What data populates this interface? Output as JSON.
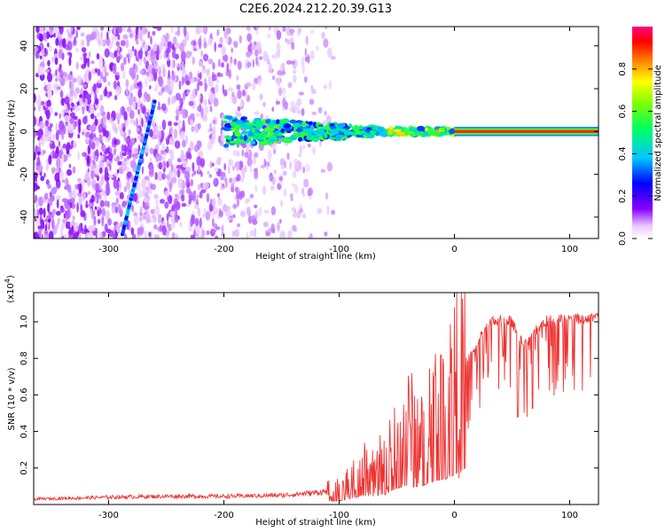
{
  "title": "C2E6.2024.212.20.39.G13",
  "chart_data": [
    {
      "type": "heatmap",
      "xlabel": "Height of straight line (km)",
      "ylabel": "Frequency (Hz)",
      "xlim": [
        -365,
        125
      ],
      "ylim": [
        -50,
        49
      ],
      "xticks": [
        -300,
        -200,
        -100,
        0,
        100
      ],
      "yticks": [
        -40,
        -20,
        0,
        20,
        40
      ],
      "colorbar": {
        "label": "Normalized spectral amplitude",
        "range": [
          0,
          1
        ],
        "ticks": [
          0.0,
          0.2,
          0.4,
          0.6,
          0.8
        ],
        "colormap": "rainbow (white-violet-blue-cyan-green-yellow-red-magenta)"
      },
      "features": {
        "diagonal_streak": {
          "from": [
            -288,
            -48
          ],
          "to": [
            -260,
            14
          ],
          "amplitude": 0.22
        },
        "tone_band": {
          "from_x": -200,
          "to_x": 125,
          "frequency": 0,
          "peak_amplitude": 0.9
        },
        "noise_region": {
          "from_x": -365,
          "to_x": -105
        }
      },
      "grid": false
    },
    {
      "type": "line",
      "xlabel": "Height of straight line (km)",
      "ylabel": "SNR (10 * v/v)",
      "y_multiplier": "(x10^4)",
      "xlim": [
        -365,
        125
      ],
      "ylim": [
        0,
        11600
      ],
      "xticks": [
        -300,
        -200,
        -100,
        0,
        100
      ],
      "yticks": [
        2000,
        4000,
        6000,
        8000,
        10000
      ],
      "ytick_labels": [
        "0.2",
        "0.4",
        "0.6",
        "0.8",
        "1.0"
      ],
      "series": [
        {
          "color": "#ee3333",
          "x": [
            -365,
            -300,
            -250,
            -200,
            -150,
            -120,
            -100,
            -90,
            -80,
            -70,
            -60,
            -50,
            -40,
            -30,
            -20,
            -10,
            0,
            10,
            20,
            30,
            40,
            50,
            60,
            80,
            100,
            125
          ],
          "y": [
            300,
            400,
            450,
            450,
            500,
            650,
            800,
            1300,
            2000,
            1800,
            2400,
            3500,
            4200,
            3800,
            5000,
            5500,
            6500,
            8000,
            9200,
            10200,
            10500,
            10300,
            9000,
            10500,
            10400,
            10500
          ]
        }
      ],
      "grid": false
    }
  ]
}
